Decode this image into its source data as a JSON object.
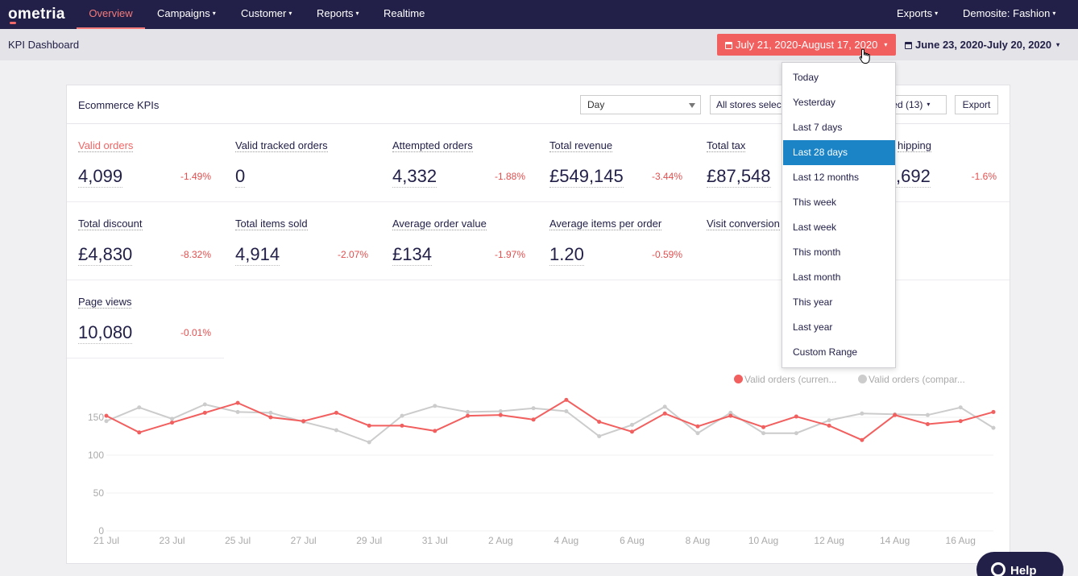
{
  "app": {
    "logo": "ometria"
  },
  "nav": {
    "items": [
      {
        "label": "Overview",
        "active": true
      },
      {
        "label": "Campaigns",
        "caret": "▾"
      },
      {
        "label": "Customer",
        "caret": "▾"
      },
      {
        "label": "Reports",
        "caret": "▾"
      },
      {
        "label": "Realtime"
      }
    ],
    "right": [
      {
        "label": "Exports",
        "caret": "▾"
      },
      {
        "label": "Demosite: Fashion",
        "caret": "▾"
      }
    ]
  },
  "header": {
    "title": "KPI Dashboard",
    "date_range": "July 21, 2020-August 17, 2020",
    "compare_range": "June 23, 2020-July 20, 2020",
    "caret": "▾"
  },
  "panel": {
    "title": "Ecommerce KPIs",
    "granularity": "Day",
    "stores": "All stores select",
    "selected": "cted (13)",
    "export": "Export"
  },
  "kpis": [
    {
      "name": "Valid orders",
      "value": "4,099",
      "change": "-1.49%",
      "active": true
    },
    {
      "name": "Valid tracked orders",
      "value": "0",
      "change": ""
    },
    {
      "name": "Attempted orders",
      "value": "4,332",
      "change": "-1.88%"
    },
    {
      "name": "Total revenue",
      "value": "£549,145",
      "change": "-3.44%"
    },
    {
      "name": "Total tax",
      "value": "£87,548",
      "change": ""
    },
    {
      "name": "hipping",
      "value": ",692",
      "change": "-1.6%"
    },
    {
      "name": "Total discount",
      "value": "£4,830",
      "change": "-8.32%"
    },
    {
      "name": "Total items sold",
      "value": "4,914",
      "change": "-2.07%"
    },
    {
      "name": "Average order value",
      "value": "£134",
      "change": "-1.97%"
    },
    {
      "name": "Average items per order",
      "value": "1.20",
      "change": "-0.59%"
    },
    {
      "name": "Visit conversion",
      "value": "",
      "change": ""
    },
    {
      "name": "Page views",
      "value": "10,080",
      "change": "-0.01%"
    }
  ],
  "dropdown": {
    "items": [
      "Today",
      "Yesterday",
      "Last 7 days",
      "Last 28 days",
      "Last 12 months",
      "This week",
      "Last week",
      "This month",
      "Last month",
      "This year",
      "Last year",
      "Custom Range"
    ],
    "selected_index": 3
  },
  "help": {
    "label": "Help"
  },
  "colors": {
    "current": "#f25f5f",
    "compare": "#cccccc",
    "nav_bg": "#222048",
    "selected": "#1a84c7"
  },
  "chart_data": {
    "type": "line",
    "x": [
      "21 Jul",
      "22 Jul",
      "23 Jul",
      "24 Jul",
      "25 Jul",
      "26 Jul",
      "27 Jul",
      "28 Jul",
      "29 Jul",
      "30 Jul",
      "31 Jul",
      "1 Aug",
      "2 Aug",
      "3 Aug",
      "4 Aug",
      "5 Aug",
      "6 Aug",
      "7 Aug",
      "8 Aug",
      "9 Aug",
      "10 Aug",
      "11 Aug",
      "12 Aug",
      "13 Aug",
      "14 Aug",
      "15 Aug",
      "16 Aug",
      "17 Aug"
    ],
    "xticks": [
      "21 Jul",
      "23 Jul",
      "25 Jul",
      "27 Jul",
      "29 Jul",
      "31 Jul",
      "2 Aug",
      "4 Aug",
      "6 Aug",
      "8 Aug",
      "10 Aug",
      "12 Aug",
      "14 Aug",
      "16 Aug"
    ],
    "yticks": [
      0,
      50,
      100,
      150
    ],
    "ylim": [
      0,
      175
    ],
    "series": [
      {
        "name": "Valid orders (curren...",
        "color": "#f25f5f",
        "values": [
          152,
          130,
          143,
          156,
          169,
          150,
          145,
          156,
          139,
          139,
          132,
          152,
          153,
          147,
          173,
          144,
          131,
          155,
          138,
          152,
          137,
          151,
          139,
          120,
          153,
          141,
          145,
          157
        ]
      },
      {
        "name": "Valid orders (compar...",
        "color": "#cccccc",
        "values": [
          145,
          163,
          148,
          167,
          157,
          156,
          144,
          133,
          117,
          152,
          165,
          157,
          158,
          162,
          158,
          125,
          140,
          164,
          129,
          156,
          129,
          129,
          146,
          155,
          154,
          153,
          163,
          136
        ]
      }
    ]
  }
}
